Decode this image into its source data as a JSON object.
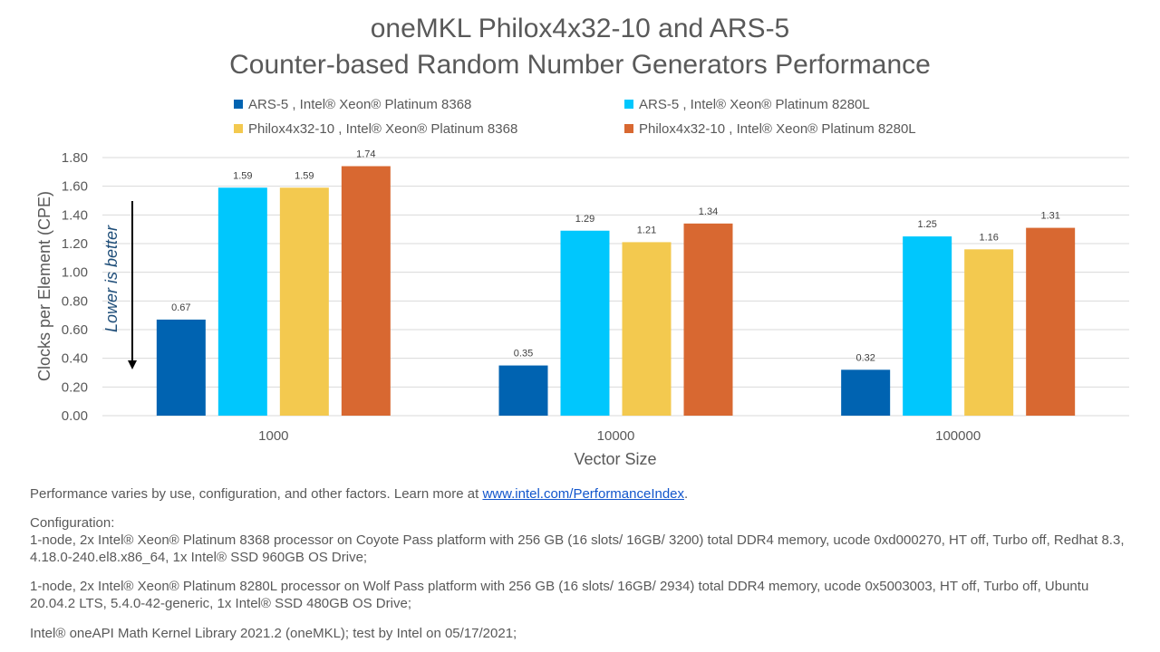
{
  "chart_data": {
    "type": "bar",
    "title": [
      "oneMKL Philox4x32-10 and ARS-5",
      "Counter-based Random Number Generators Performance"
    ],
    "xlabel": "Vector Size",
    "ylabel": "Clocks per Element (CPE)",
    "categories": [
      "1000",
      "10000",
      "100000"
    ],
    "ylim": [
      0,
      1.8
    ],
    "yticks": [
      "0.00",
      "0.20",
      "0.40",
      "0.60",
      "0.80",
      "1.00",
      "1.20",
      "1.40",
      "1.60",
      "1.80"
    ],
    "grid": true,
    "legend_position": "top",
    "series": [
      {
        "name": "ARS-5 , Intel® Xeon® Platinum 8368",
        "color": "#0063b1",
        "values": [
          0.67,
          0.35,
          0.32
        ],
        "labels": [
          "0.67",
          "0.35",
          "0.32"
        ]
      },
      {
        "name": "ARS-5 , Intel® Xeon® Platinum 8280L",
        "color": "#00c7fd",
        "values": [
          1.59,
          1.29,
          1.25
        ],
        "labels": [
          "1.59",
          "1.29",
          "1.25"
        ]
      },
      {
        "name": "Philox4x32-10 , Intel® Xeon® Platinum 8368",
        "color": "#f3c94f",
        "values": [
          1.59,
          1.21,
          1.16
        ],
        "labels": [
          "1.59",
          "1.21",
          "1.16"
        ]
      },
      {
        "name": "Philox4x32-10 , Intel® Xeon® Platinum 8280L",
        "color": "#d86831",
        "values": [
          1.74,
          1.34,
          1.31
        ],
        "labels": [
          "1.74",
          "1.34",
          "1.31"
        ]
      }
    ],
    "annotation": "Lower is better"
  },
  "colors": {
    "annotation": "#1f4e79",
    "grid": "#d9d9d9",
    "axis_text": "#595959"
  },
  "footer": {
    "perf_prefix": "Performance varies by use, configuration, and other factors. Learn more at ",
    "perf_link": "www.intel.com/PerformanceIndex",
    "perf_suffix": ".",
    "config_label": "Configuration:",
    "config_1": "1-node, 2x Intel® Xeon® Platinum 8368 processor on Coyote Pass platform with 256 GB (16 slots/ 16GB/ 3200) total DDR4 memory, ucode 0xd000270, HT off, Turbo off, Redhat 8.3, 4.18.0-240.el8.x86_64, 1x Intel® SSD 960GB OS Drive;",
    "config_2": "1-node, 2x Intel® Xeon® Platinum 8280L processor on Wolf Pass platform with 256 GB (16 slots/ 16GB/ 2934) total DDR4 memory, ucode 0x5003003, HT off, Turbo off, Ubuntu 20.04.2 LTS, 5.4.0-42-generic, 1x Intel® SSD 480GB OS Drive;",
    "library": "Intel® oneAPI Math Kernel Library 2021.2 (oneMKL); test by Intel on 05/17/2021;"
  }
}
